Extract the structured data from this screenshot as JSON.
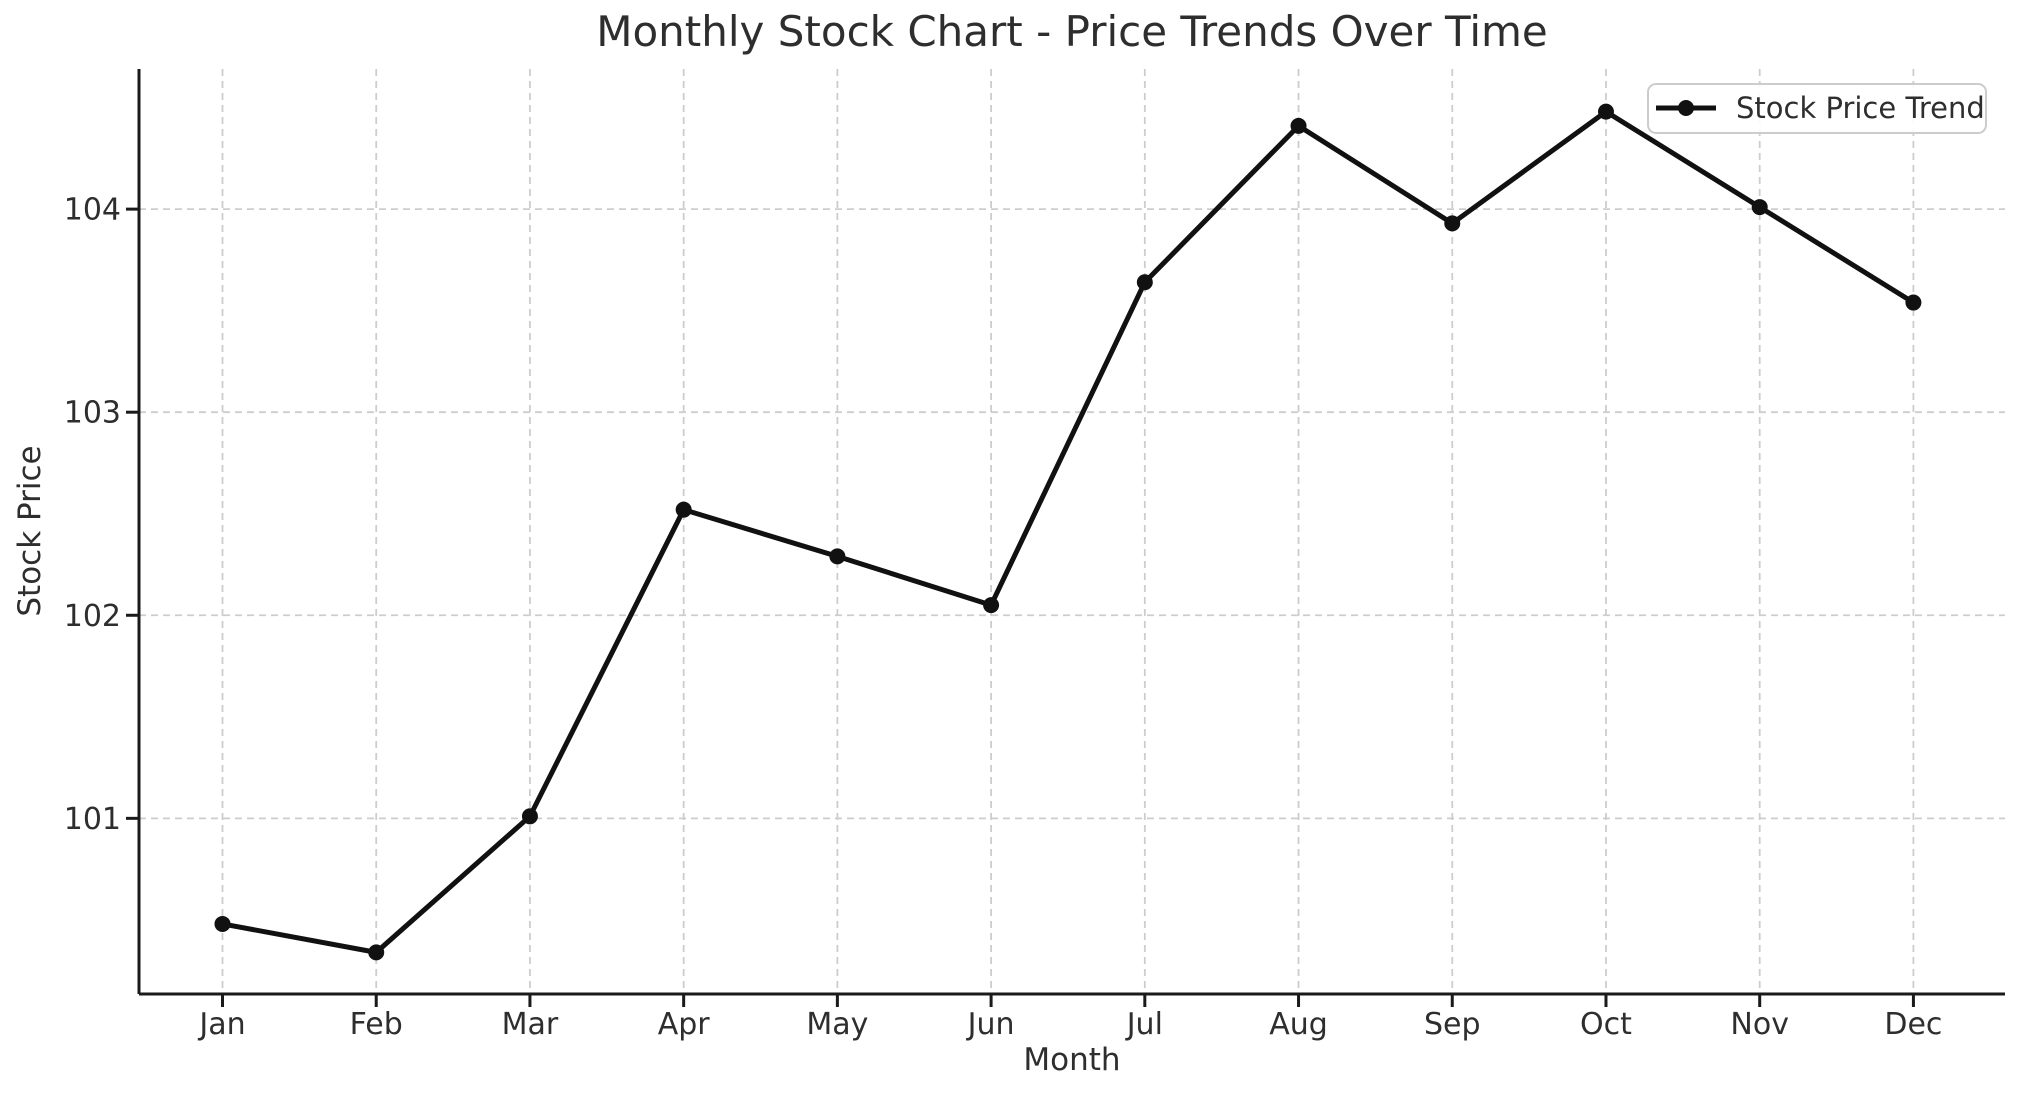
{
  "figure": {
    "title": "Monthly Stock Chart - Price Trends Over Time"
  },
  "chart_data": {
    "type": "line",
    "title": "Monthly Stock Chart - Price Trends Over Time",
    "xlabel": "Month",
    "ylabel": "Stock Price",
    "categories": [
      "Jan",
      "Feb",
      "Mar",
      "Apr",
      "May",
      "Jun",
      "Jul",
      "Aug",
      "Sep",
      "Oct",
      "Nov",
      "Dec"
    ],
    "series": [
      {
        "name": "Stock Price Trend",
        "values": [
          100.48,
          100.34,
          101.01,
          102.52,
          102.29,
          102.05,
          103.64,
          104.41,
          103.93,
          104.48,
          104.01,
          103.54
        ]
      }
    ],
    "yticks": [
      101,
      102,
      103,
      104
    ],
    "ylim": [
      100.135,
      104.69
    ],
    "grid": true,
    "grid_style": "dashed",
    "marker": "circle",
    "legend_position": "upper right",
    "legend_entries": [
      "Stock Price Trend"
    ]
  },
  "colors": {
    "line": "#111111",
    "marker": "#111111",
    "grid": "#cdcdcd",
    "spine": "#1a1a1a",
    "text": "#2e2e2e",
    "legend_border": "#cccccc",
    "background": "#ffffff"
  }
}
